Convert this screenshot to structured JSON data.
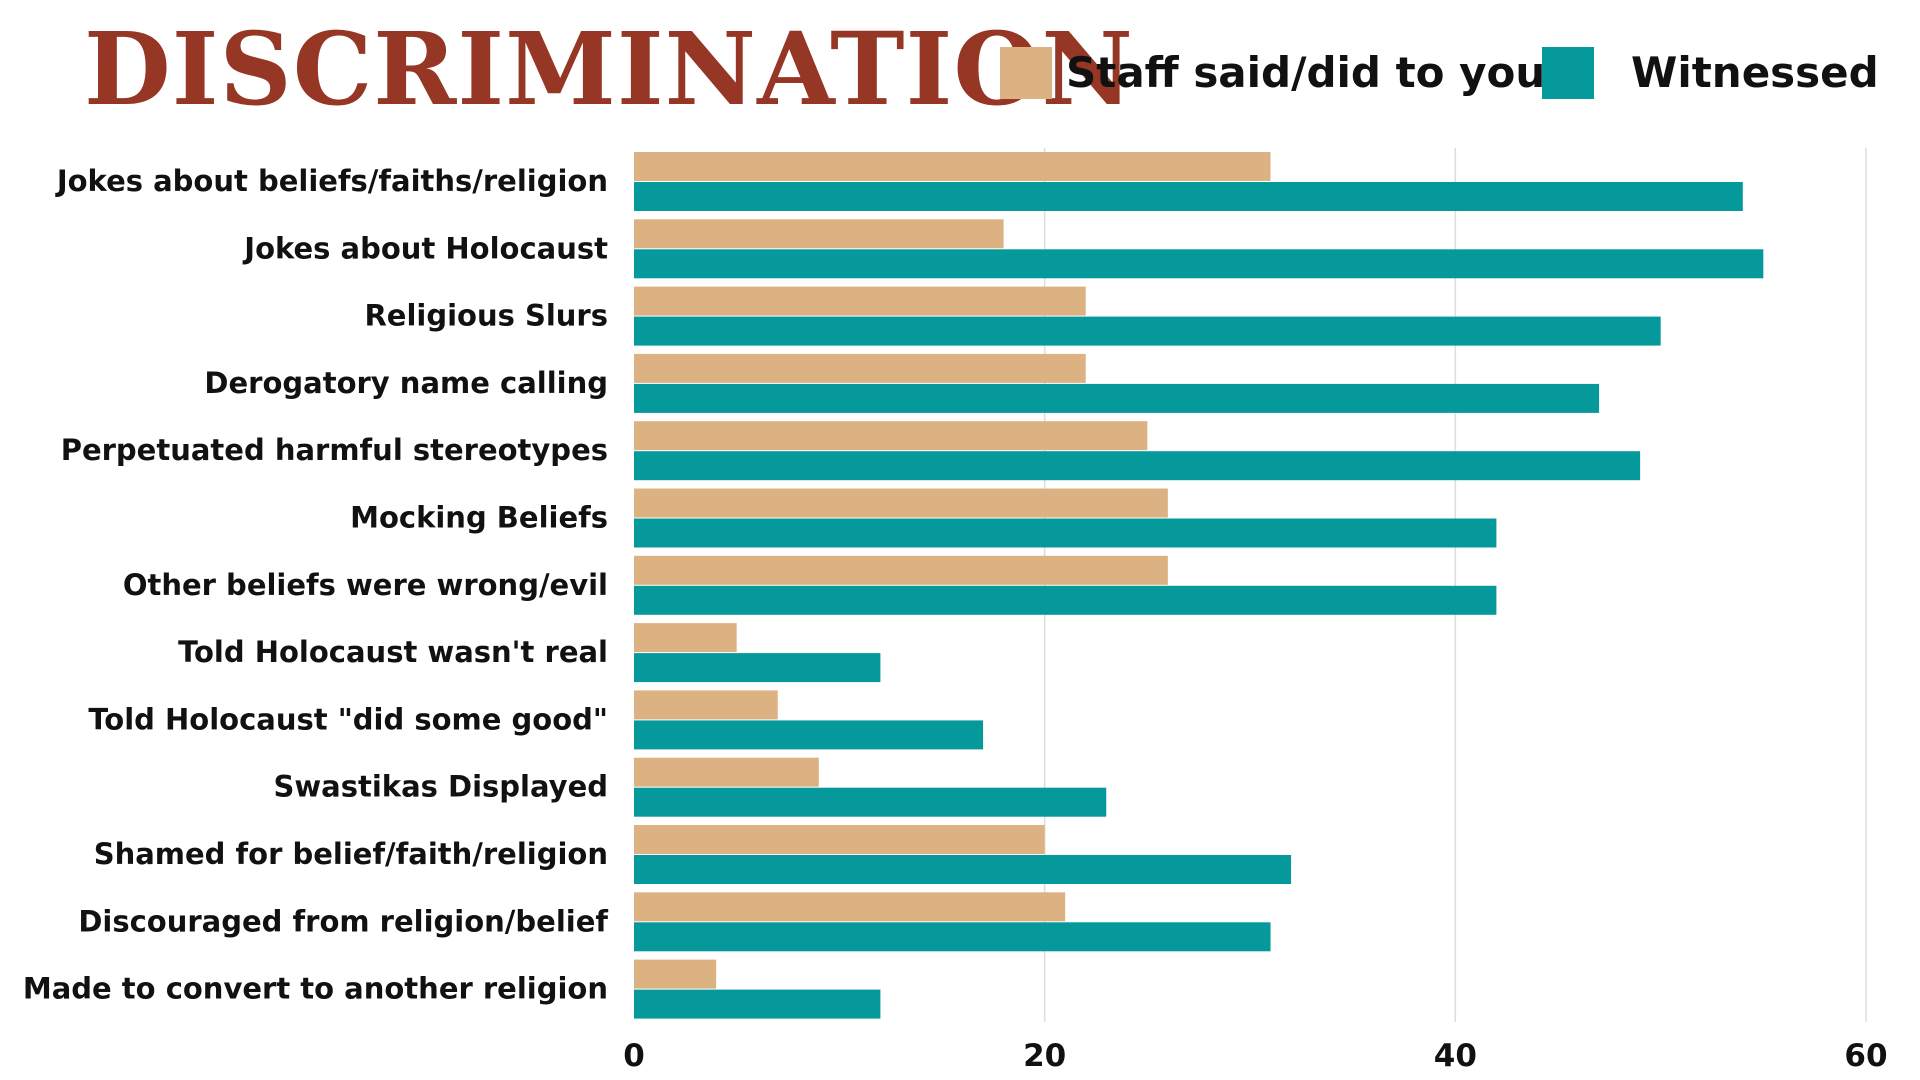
{
  "colors": {
    "title": "#963625",
    "staff": "#DCB282",
    "witnessed": "#05999C",
    "grid": "#dddddd",
    "text": "#111111"
  },
  "chart_data": {
    "type": "bar",
    "orientation": "horizontal",
    "title": "DISCRIMINATION",
    "xlabel": "",
    "ylabel": "",
    "xlim": [
      0,
      60
    ],
    "ticks": [
      0,
      20,
      40,
      60
    ],
    "grid": true,
    "legend_position": "top-right",
    "categories": [
      "Jokes about beliefs/faiths/religion",
      "Jokes about Holocaust",
      "Religious Slurs",
      "Derogatory name calling",
      "Perpetuated harmful stereotypes",
      "Mocking Beliefs",
      "Other beliefs were wrong/evil",
      "Told Holocaust wasn't real",
      "Told Holocaust \"did some good\"",
      "Swastikas Displayed",
      "Shamed for belief/faith/religion",
      "Discouraged from religion/belief",
      "Made to convert to another religion"
    ],
    "series": [
      {
        "name": "Staff said/did to you",
        "color": "#DCB282",
        "values": [
          31,
          18,
          22,
          22,
          25,
          26,
          26,
          5,
          7,
          9,
          20,
          21,
          4
        ]
      },
      {
        "name": "Witnessed",
        "color": "#05999C",
        "values": [
          54,
          55,
          50,
          47,
          49,
          42,
          42,
          12,
          17,
          23,
          32,
          31,
          12
        ]
      }
    ]
  }
}
